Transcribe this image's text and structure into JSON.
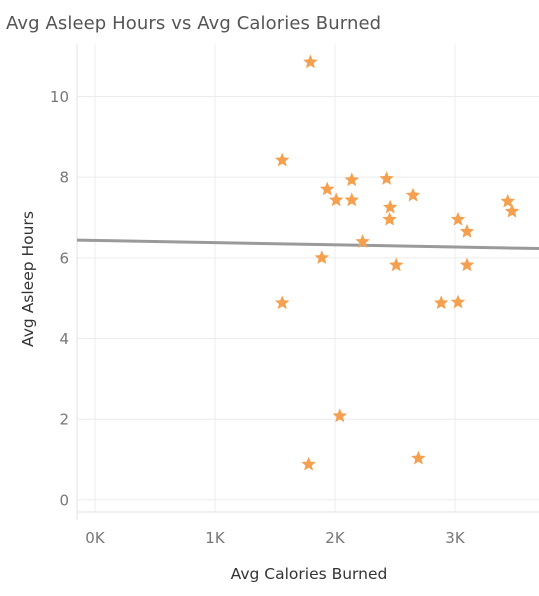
{
  "chart_data": {
    "type": "scatter",
    "title": "Avg Asleep Hours vs Avg Calories Burned",
    "xlabel": "Avg Calories Burned",
    "ylabel": "Avg Asleep Hours",
    "xlim": [
      -150,
      3700
    ],
    "ylim": [
      -0.3,
      11.3
    ],
    "x_ticks": [
      0,
      1000,
      2000,
      3000
    ],
    "x_tick_labels": [
      "0K",
      "1K",
      "2K",
      "3K"
    ],
    "y_ticks": [
      0,
      2,
      4,
      6,
      8,
      10
    ],
    "y_tick_labels": [
      "0",
      "2",
      "4",
      "6",
      "8",
      "10"
    ],
    "grid": true,
    "marker": "star",
    "marker_color": "#f5a04f",
    "trend_color": "#9a9a9a",
    "trend_line": {
      "x": [
        -150,
        3700
      ],
      "y": [
        6.44,
        6.23
      ]
    },
    "points": [
      {
        "x": 1795,
        "y": 10.85
      },
      {
        "x": 1560,
        "y": 8.42
      },
      {
        "x": 1935,
        "y": 7.7
      },
      {
        "x": 2010,
        "y": 7.43
      },
      {
        "x": 2140,
        "y": 7.93
      },
      {
        "x": 2140,
        "y": 7.43
      },
      {
        "x": 2430,
        "y": 7.96
      },
      {
        "x": 2460,
        "y": 7.25
      },
      {
        "x": 2455,
        "y": 6.95
      },
      {
        "x": 2650,
        "y": 7.55
      },
      {
        "x": 2230,
        "y": 6.4
      },
      {
        "x": 1890,
        "y": 6.0
      },
      {
        "x": 2510,
        "y": 5.82
      },
      {
        "x": 1560,
        "y": 4.88
      },
      {
        "x": 2885,
        "y": 4.88
      },
      {
        "x": 3025,
        "y": 4.9
      },
      {
        "x": 3025,
        "y": 6.95
      },
      {
        "x": 3100,
        "y": 6.65
      },
      {
        "x": 3100,
        "y": 5.82
      },
      {
        "x": 3440,
        "y": 7.4
      },
      {
        "x": 3475,
        "y": 7.15
      },
      {
        "x": 2040,
        "y": 2.08
      },
      {
        "x": 1780,
        "y": 0.88
      },
      {
        "x": 2695,
        "y": 1.03
      }
    ]
  }
}
